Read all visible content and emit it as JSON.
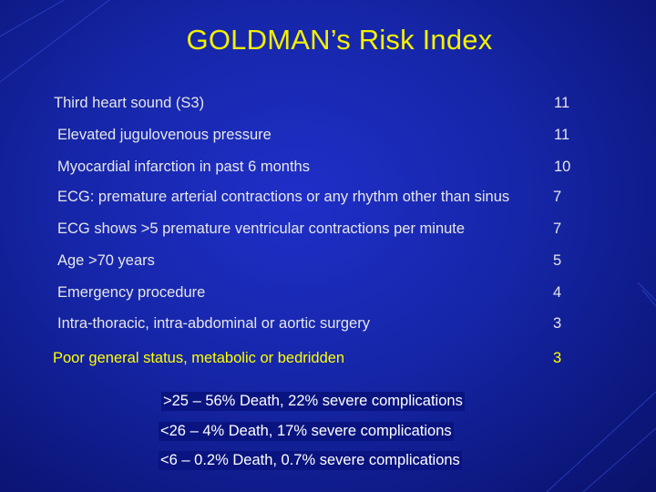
{
  "title": "GOLDMAN’s Risk Index",
  "criteria": [
    {
      "label": "Third heart sound (S3)",
      "score": "11"
    },
    {
      "label": "Elevated jugulovenous pressure",
      "score": "11"
    },
    {
      "label": "Myocardial infarction in past 6 months",
      "score": "10"
    },
    {
      "label": "ECG: premature arterial contractions or any rhythm other than sinus",
      "score": "7"
    },
    {
      "label": "ECG shows >5 premature ventricular contractions per minute",
      "score": "7"
    },
    {
      "label": "Age >70 years",
      "score": "5"
    },
    {
      "label": "Emergency procedure",
      "score": "4"
    },
    {
      "label": "Intra-thoracic, intra-abdominal or aortic surgery",
      "score": "3"
    },
    {
      "label": "Poor general status, metabolic or bedridden",
      "score": "3"
    }
  ],
  "outcomes": [
    ">25 – 56% Death, 22% severe complications",
    "<26 –   4% Death,  17% severe complications",
    "<6 – 0.2% Death,  0.7% severe complications"
  ],
  "colors": {
    "background": "#1626a8",
    "title": "#f4f000",
    "text": "#e6e6e6",
    "highlight": "#ffff00",
    "summary_text": "#ffffff"
  }
}
